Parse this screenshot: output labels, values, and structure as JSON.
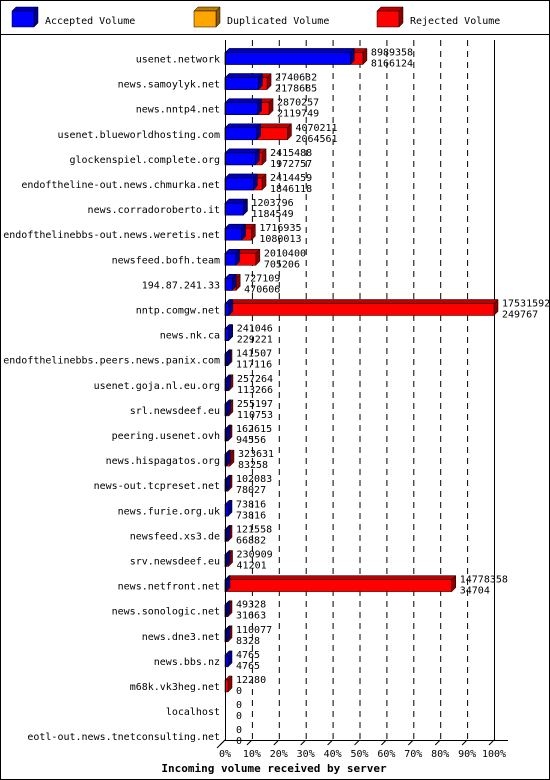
{
  "chart_data": {
    "type": "bar",
    "orientation": "horizontal",
    "stacking": "overlay",
    "xlabel": "Incoming volume received by server",
    "xlim": [
      0,
      100
    ],
    "xticks": [
      "0%",
      "10%",
      "20%",
      "30%",
      "40%",
      "50%",
      "60%",
      "70%",
      "80%",
      "90%",
      "100%"
    ],
    "grid": true,
    "legend_position": "top",
    "legend": [
      {
        "name": "Accepted Volume",
        "color": "#0000ff"
      },
      {
        "name": "Duplicated Volume",
        "color": "#ffa500"
      },
      {
        "name": "Rejected Volume",
        "color": "#ff0000"
      }
    ],
    "rows": [
      {
        "server": "usenet.network",
        "total": "8989358",
        "accepted": "8166124",
        "t": 8989358,
        "a": 8166124
      },
      {
        "server": "news.samoylyk.net",
        "total": "2740632",
        "accepted": "2178685",
        "t": 2740632,
        "a": 2178685
      },
      {
        "server": "news.nntp4.net",
        "total": "2870257",
        "accepted": "2119749",
        "t": 2870257,
        "a": 2119749
      },
      {
        "server": "usenet.blueworldhosting.com",
        "total": "4070211",
        "accepted": "2064561",
        "t": 4070211,
        "a": 2064561
      },
      {
        "server": "glockenspiel.complete.org",
        "total": "2415488",
        "accepted": "1972757",
        "t": 2415488,
        "a": 1972757
      },
      {
        "server": "endoftheline-out.news.chmurka.net",
        "total": "2414459",
        "accepted": "1846118",
        "t": 2414459,
        "a": 1846118
      },
      {
        "server": "news.corradoroberto.it",
        "total": "1203796",
        "accepted": "1184549",
        "t": 1203796,
        "a": 1184549
      },
      {
        "server": "endofthelinebbs-out.news.weretis.net",
        "total": "1716935",
        "accepted": "1080013",
        "t": 1716935,
        "a": 1080013
      },
      {
        "server": "newsfeed.bofh.team",
        "total": "2010400",
        "accepted": "705206",
        "t": 2010400,
        "a": 705206
      },
      {
        "server": "194.87.241.33",
        "total": "727109",
        "accepted": "470606",
        "t": 727109,
        "a": 470606
      },
      {
        "server": "nntp.comgw.net",
        "total": "17531592",
        "accepted": "249767",
        "t": 17531592,
        "a": 249767
      },
      {
        "server": "news.nk.ca",
        "total": "241046",
        "accepted": "229221",
        "t": 241046,
        "a": 229221
      },
      {
        "server": "endofthelinebbs.peers.news.panix.com",
        "total": "141507",
        "accepted": "117116",
        "t": 141507,
        "a": 117116
      },
      {
        "server": "usenet.goja.nl.eu.org",
        "total": "257264",
        "accepted": "113266",
        "t": 257264,
        "a": 113266
      },
      {
        "server": "srl.newsdeef.eu",
        "total": "255197",
        "accepted": "110753",
        "t": 255197,
        "a": 110753
      },
      {
        "server": "peering.usenet.ovh",
        "total": "162615",
        "accepted": "94556",
        "t": 162615,
        "a": 94556
      },
      {
        "server": "news.hispagatos.org",
        "total": "323631",
        "accepted": "83258",
        "t": 323631,
        "a": 83258
      },
      {
        "server": "news-out.tcpreset.net",
        "total": "102083",
        "accepted": "78027",
        "t": 102083,
        "a": 78027
      },
      {
        "server": "news.furie.org.uk",
        "total": "73816",
        "accepted": "73816",
        "t": 73816,
        "a": 73816
      },
      {
        "server": "newsfeed.xs3.de",
        "total": "121558",
        "accepted": "66882",
        "t": 121558,
        "a": 66882
      },
      {
        "server": "srv.newsdeef.eu",
        "total": "230909",
        "accepted": "41201",
        "t": 230909,
        "a": 41201
      },
      {
        "server": "news.netfront.net",
        "total": "14778358",
        "accepted": "34704",
        "t": 14778358,
        "a": 34704
      },
      {
        "server": "news.sonologic.net",
        "total": "49328",
        "accepted": "31663",
        "t": 49328,
        "a": 31663
      },
      {
        "server": "news.dne3.net",
        "total": "110077",
        "accepted": "8328",
        "t": 110077,
        "a": 8328
      },
      {
        "server": "news.bbs.nz",
        "total": "4765",
        "accepted": "4765",
        "t": 4765,
        "a": 4765
      },
      {
        "server": "m68k.vk3heg.net",
        "total": "12280",
        "accepted": "0",
        "t": 12280,
        "a": 0
      },
      {
        "server": "localhost",
        "total": "0",
        "accepted": "0",
        "t": 0,
        "a": 0
      },
      {
        "server": "eotl-out.news.tnetconsulting.net",
        "total": "0",
        "accepted": "0",
        "t": 0,
        "a": 0
      }
    ]
  }
}
